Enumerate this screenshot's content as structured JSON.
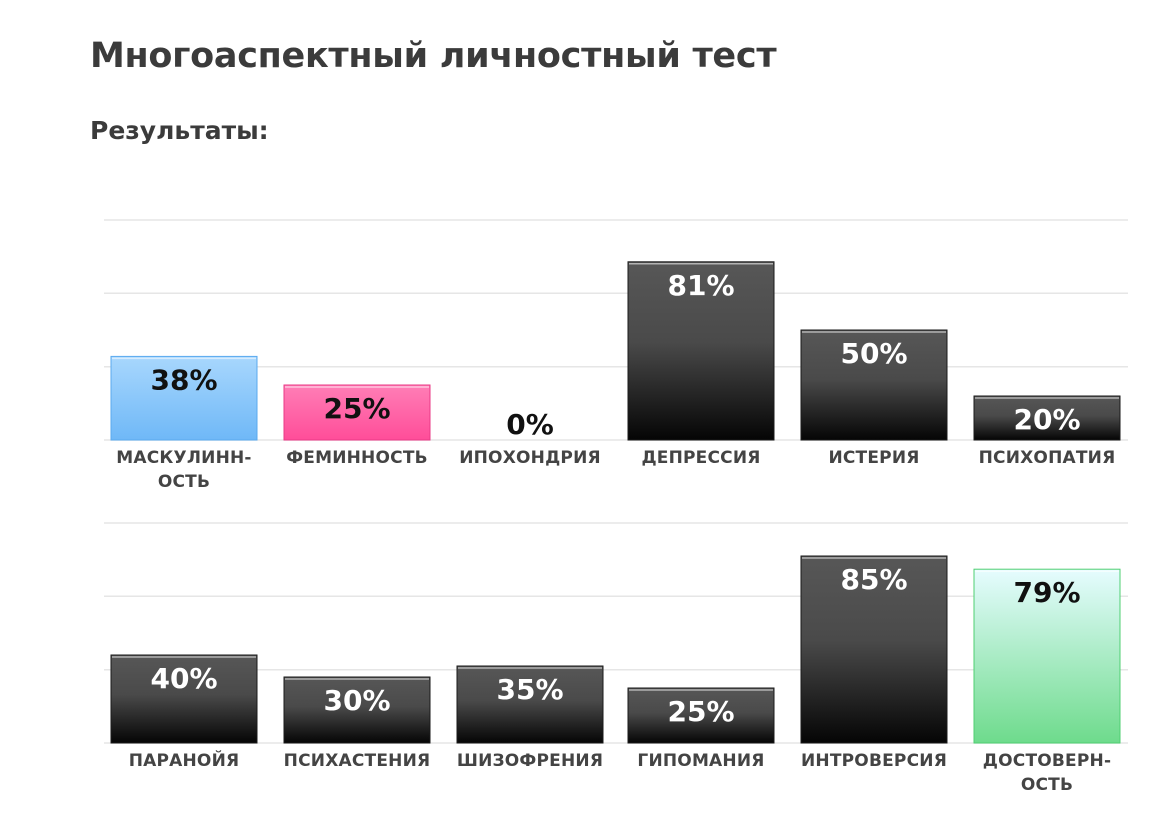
{
  "page": {
    "title": "Многоаспектный личностный тест",
    "subtitle": "Результаты:"
  },
  "colors": {
    "dark_bar_top": "#575757",
    "dark_bar_bottom": "#050505",
    "masculinity_top": "#a8d7fd",
    "masculinity_bottom": "#6fb8f7",
    "femininity_top": "#ff7eb6",
    "femininity_bottom": "#ff4d99",
    "reliability_top": "#e6fcff",
    "reliability_bottom": "#6edb8c",
    "text_dark": "#3b3b3b"
  },
  "chart_data": [
    {
      "type": "bar",
      "categories": [
        "МАСКУЛИНН-\nОСТЬ",
        "ФЕМИННОСТЬ",
        "ИПОХОНДРИЯ",
        "ДЕПРЕССИЯ",
        "ИСТЕРИЯ",
        "ПСИХОПАТИЯ"
      ],
      "values": [
        38,
        25,
        0,
        81,
        50,
        20
      ],
      "value_labels": [
        "38%",
        "25%",
        "0%",
        "81%",
        "50%",
        "20%"
      ],
      "bar_styles": [
        "masculinity",
        "femininity",
        "dark",
        "dark",
        "dark",
        "dark"
      ],
      "ylim": [
        0,
        100
      ],
      "grid": true
    },
    {
      "type": "bar",
      "categories": [
        "ПАРАНОЙЯ",
        "ПСИХАСТЕНИЯ",
        "ШИЗОФРЕНИЯ",
        "ГИПОМАНИЯ",
        "ИНТРОВЕРСИЯ",
        "ДОСТОВЕРН-\nОСТЬ"
      ],
      "values": [
        40,
        30,
        35,
        25,
        85,
        79
      ],
      "value_labels": [
        "40%",
        "30%",
        "35%",
        "25%",
        "85%",
        "79%"
      ],
      "bar_styles": [
        "dark",
        "dark",
        "dark",
        "dark",
        "dark",
        "reliability"
      ],
      "ylim": [
        0,
        100
      ],
      "grid": true
    }
  ]
}
